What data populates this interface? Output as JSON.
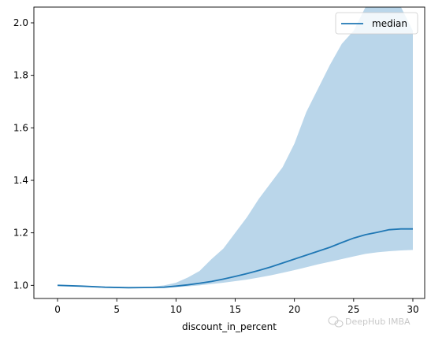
{
  "chart_data": {
    "type": "area",
    "xlabel": "discount_in_percent",
    "ylabel": "",
    "xlim": [
      -2,
      31
    ],
    "ylim": [
      0.95,
      2.06
    ],
    "xticks": [
      0,
      5,
      10,
      15,
      20,
      25,
      30
    ],
    "yticks": [
      1.0,
      1.2,
      1.4,
      1.6,
      1.8,
      2.0
    ],
    "grid": false,
    "legend_position": "top-right",
    "series": [
      {
        "name": "median",
        "color": "#1f77b4",
        "x": [
          0,
          2,
          4,
          6,
          8,
          9,
          10,
          11,
          12,
          13,
          14,
          15,
          16,
          17,
          18,
          19,
          20,
          21,
          22,
          23,
          24,
          25,
          26,
          27,
          28,
          29,
          30
        ],
        "values": [
          1.0,
          0.997,
          0.993,
          0.991,
          0.992,
          0.993,
          0.997,
          1.002,
          1.008,
          1.015,
          1.024,
          1.034,
          1.045,
          1.057,
          1.07,
          1.085,
          1.1,
          1.115,
          1.13,
          1.145,
          1.163,
          1.18,
          1.193,
          1.202,
          1.212,
          1.215,
          1.215
        ]
      }
    ],
    "band": {
      "color": "#bad6ea",
      "x": [
        0,
        2,
        4,
        6,
        8,
        9,
        10,
        11,
        12,
        13,
        14,
        15,
        16,
        17,
        18,
        19,
        20,
        21,
        22,
        23,
        24,
        25,
        26,
        27,
        28,
        29,
        30
      ],
      "upper": [
        1.0,
        0.997,
        0.993,
        0.992,
        0.995,
        1.0,
        1.01,
        1.03,
        1.055,
        1.1,
        1.14,
        1.2,
        1.26,
        1.33,
        1.39,
        1.45,
        1.54,
        1.66,
        1.75,
        1.84,
        1.92,
        1.97,
        2.06,
        2.06,
        2.06,
        2.06,
        1.97
      ],
      "lower": [
        1.0,
        0.997,
        0.993,
        0.99,
        0.99,
        0.991,
        0.993,
        0.996,
        1.0,
        1.005,
        1.01,
        1.016,
        1.022,
        1.03,
        1.038,
        1.048,
        1.058,
        1.069,
        1.08,
        1.09,
        1.1,
        1.11,
        1.12,
        1.126,
        1.13,
        1.133,
        1.135
      ]
    }
  },
  "legend": {
    "entries": [
      "median"
    ]
  },
  "watermark": {
    "text": "DeepHub IMBA",
    "icon": "wechat-icon"
  }
}
